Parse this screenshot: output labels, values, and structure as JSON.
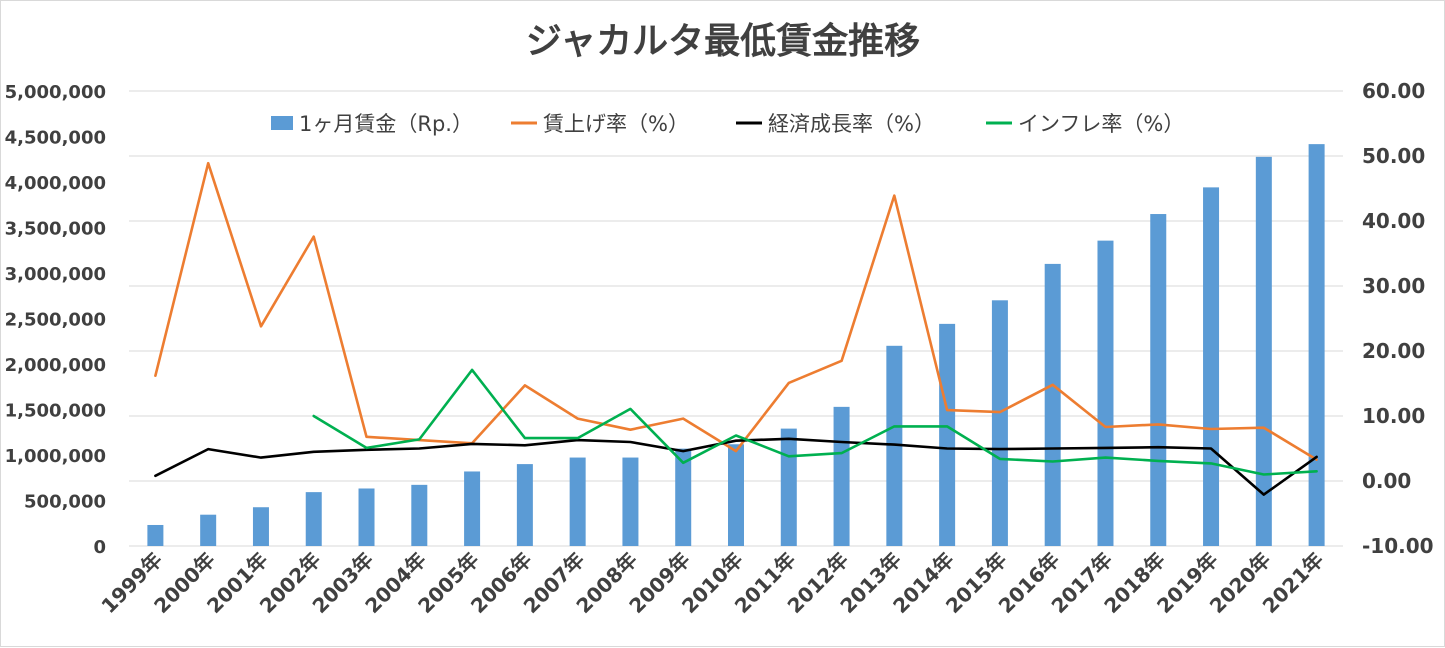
{
  "chart_data": {
    "type": "bar",
    "title": "ジャカルタ最低賃金推移",
    "categories": [
      "1999年",
      "2000年",
      "2001年",
      "2002年",
      "2003年",
      "2004年",
      "2005年",
      "2006年",
      "2007年",
      "2008年",
      "2009年",
      "2010年",
      "2011年",
      "2012年",
      "2013年",
      "2014年",
      "2015年",
      "2016年",
      "2017年",
      "2018年",
      "2019年",
      "2020年",
      "2021年"
    ],
    "y_left": {
      "ticks": [
        "0",
        "500,000",
        "1,000,000",
        "1,500,000",
        "2,000,000",
        "2,500,000",
        "3,000,000",
        "3,500,000",
        "4,000,000",
        "4,500,000",
        "5,000,000"
      ],
      "ylim": [
        0,
        5000000
      ]
    },
    "y_right": {
      "ticks": [
        "-10.00",
        "0.00",
        "10.00",
        "20.00",
        "30.00",
        "40.00",
        "50.00",
        "60.00"
      ],
      "ylim": [
        -10,
        60
      ]
    },
    "grid": true,
    "legend_position": "top",
    "series": [
      {
        "name": "1ヶ月賃金（Rp.）",
        "type": "bar",
        "axis": "left",
        "color": "#5b9bd5",
        "values": [
          231000,
          344000,
          426000,
          592000,
          632000,
          672000,
          819000,
          900000,
          972000,
          972000,
          1070000,
          1118000,
          1290000,
          1529000,
          2200000,
          2441000,
          2700000,
          3100000,
          3355750,
          3648035,
          3940973,
          4276349,
          4416186
        ]
      },
      {
        "name": "賃上げ率（%）",
        "type": "line",
        "axis": "right",
        "color": "#ed7d31",
        "values": [
          16.2,
          48.9,
          23.8,
          37.6,
          6.8,
          6.3,
          5.8,
          14.7,
          9.6,
          7.9,
          9.6,
          4.6,
          15.1,
          18.5,
          43.9,
          10.9,
          10.6,
          14.8,
          8.3,
          8.7,
          8.0,
          8.2,
          3.3
        ]
      },
      {
        "name": "経済成長率（%）",
        "type": "line",
        "axis": "right",
        "color": "#000000",
        "values": [
          0.8,
          4.9,
          3.6,
          4.5,
          4.8,
          5.0,
          5.7,
          5.5,
          6.3,
          6.0,
          4.6,
          6.2,
          6.5,
          6.0,
          5.6,
          5.0,
          4.9,
          5.0,
          5.1,
          5.2,
          5.0,
          -2.1,
          3.7
        ]
      },
      {
        "name": "インフレ率（%）",
        "type": "line",
        "axis": "right",
        "color": "#00b050",
        "values": [
          null,
          null,
          null,
          10.0,
          5.1,
          6.4,
          17.1,
          6.6,
          6.6,
          11.1,
          2.8,
          7.0,
          3.8,
          4.3,
          8.4,
          8.4,
          3.4,
          3.0,
          3.6,
          3.1,
          2.7,
          1.0,
          1.5
        ]
      }
    ]
  }
}
